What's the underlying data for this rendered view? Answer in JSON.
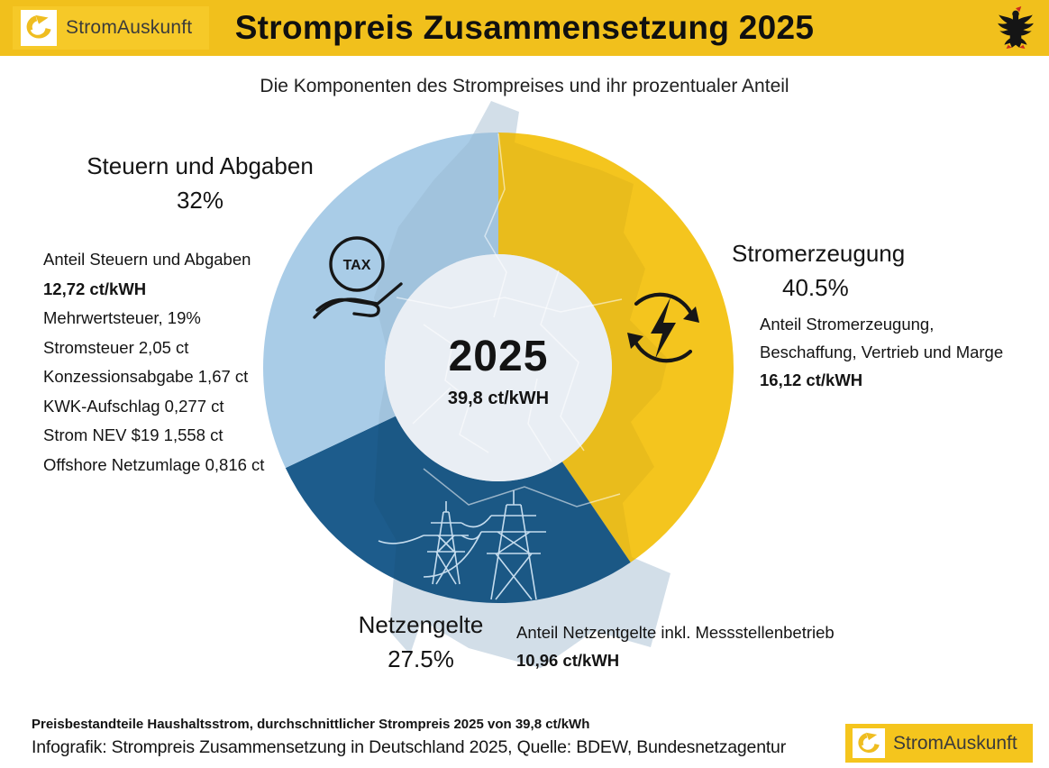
{
  "header": {
    "logo_text": "StromAuskunft",
    "title": "Strompreis Zusammensetzung 2025"
  },
  "subtitle": "Die Komponenten des Strompreises und ihr prozentualer Anteil",
  "chart_data": {
    "type": "pie",
    "donut": true,
    "start_angle_deg": 0,
    "center_label": "2025",
    "center_sublabel": "39,8 ct/kWH",
    "legend_position": "around",
    "segments": [
      {
        "name": "Stromerzeugung",
        "pct_label": "40.5%",
        "value_pct": 40.5,
        "color": "#F4C51E",
        "icon": "electricity-cycle-icon",
        "details": [
          "Anteil Stromerzeugung,",
          "Beschaffung, Vertrieb und Marge"
        ],
        "value_bold": "16,12 ct/kWH"
      },
      {
        "name": "Netzengelte",
        "pct_label": "27.5%",
        "value_pct": 27.5,
        "color": "#1D5C8C",
        "icon": "power-pylons-icon",
        "details": [
          "Anteil Netzentgelte inkl. Messstellenbetrieb"
        ],
        "value_bold": "10,96 ct/kWH"
      },
      {
        "name": "Steuern und Abgaben",
        "pct_label": "32%",
        "value_pct": 32,
        "color": "#A9CCE7",
        "icon": "tax-hand-icon",
        "details": [
          "Anteil Steuern und Abgaben"
        ],
        "value_bold": "12,72 ct/kWH",
        "breakdown": [
          "Mehrwertsteuer, 19%",
          "Stromsteuer 2,05 ct",
          "Konzessionsabgabe 1,67 ct",
          "KWK-Aufschlag 0,277 ct",
          "Strom NEV $19 1,558 ct",
          "Offshore Netzumlage 0,816 ct"
        ]
      }
    ],
    "colors": {
      "map_background": "#DCE8F3",
      "center_circle": "#E9EEF4",
      "header_bar": "#F1C01C"
    }
  },
  "footer": {
    "line1": "Preisbestandteile Haushaltsstrom, durchschnittlicher Strompreis 2025 von 39,8 ct/kWh",
    "line2": "Infografik: Strompreis Zusammensetzung in Deutschland 2025, Quelle: BDEW, Bundesnetzagentur",
    "logo_text": "StromAuskunft"
  }
}
